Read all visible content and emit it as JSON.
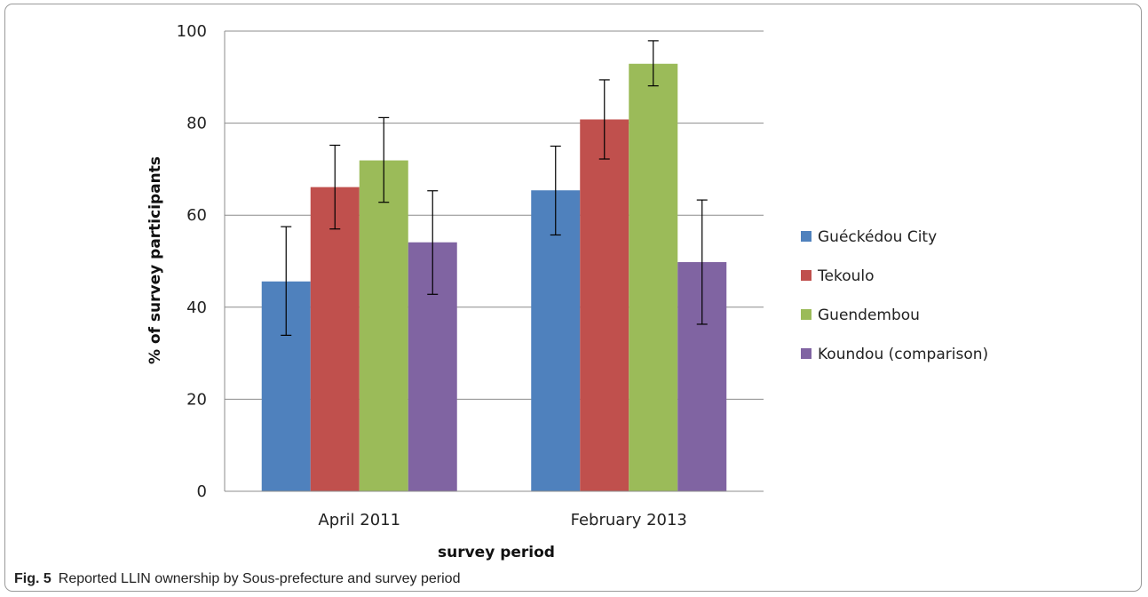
{
  "figure": {
    "label": "Fig. 5",
    "caption": "Reported LLIN ownership by Sous-prefecture and survey period"
  },
  "chart_data": {
    "type": "bar",
    "categories": [
      "April 2011",
      "February 2013"
    ],
    "series": [
      {
        "name": "Guéckédou City",
        "color": "#4f81bd",
        "values": [
          45.6,
          65.4
        ],
        "error_low": [
          33.9,
          55.7
        ],
        "error_high": [
          57.5,
          75.0
        ]
      },
      {
        "name": "Tekoulo",
        "color": "#c0504d",
        "values": [
          66.1,
          80.8
        ],
        "error_low": [
          57.0,
          72.2
        ],
        "error_high": [
          75.2,
          89.4
        ]
      },
      {
        "name": "Guendembou",
        "color": "#9bbb59",
        "values": [
          71.9,
          92.9
        ],
        "error_low": [
          62.8,
          88.1
        ],
        "error_high": [
          81.2,
          97.9
        ]
      },
      {
        "name": "Koundou (comparison)",
        "color": "#8064a2",
        "values": [
          54.1,
          49.8
        ],
        "error_low": [
          42.8,
          36.3
        ],
        "error_high": [
          65.3,
          63.3
        ]
      }
    ],
    "xlabel": "survey period",
    "ylabel": "% of survey participants",
    "ylim": [
      0,
      100
    ],
    "yticks": [
      0,
      20,
      40,
      60,
      80,
      100
    ],
    "grid": true,
    "legend_position": "right"
  }
}
